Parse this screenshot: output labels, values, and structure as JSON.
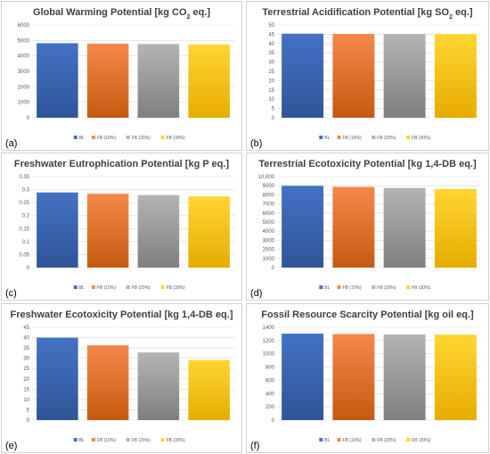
{
  "colors": {
    "BL": [
      "#4472c4",
      "#2f5597"
    ],
    "FB (10%)": [
      "#f4894a",
      "#c55a11"
    ],
    "FB (20%)": [
      "#b4b4b4",
      "#7f7f7f"
    ],
    "FB (30%)": [
      "#ffd633",
      "#e6ac00"
    ]
  },
  "legend": [
    "BL",
    "FB (10%)",
    "FB (20%)",
    "FB (30%)"
  ],
  "chart_data": [
    {
      "type": "bar",
      "panel_label": "(a)",
      "title_parts": [
        "Global Warming Potential [kg CO",
        "2",
        " eq.]"
      ],
      "categories": [
        "BL",
        "FB (10%)",
        "FB (20%)",
        "FB (30%)"
      ],
      "values": [
        4820,
        4790,
        4770,
        4740
      ],
      "ylim": [
        0,
        6000
      ],
      "ticks": [
        0,
        1000,
        2000,
        3000,
        4000,
        5000,
        6000
      ],
      "tick_labels": [
        "0",
        "1000",
        "2000",
        "3000",
        "4000",
        "5000",
        "6000"
      ],
      "grid": true
    },
    {
      "type": "bar",
      "panel_label": "(b)",
      "title_parts": [
        "Terrestrial Acidification Potential [kg SO",
        "2",
        " eq.]"
      ],
      "categories": [
        "BL",
        "FB (10%)",
        "FB (20%)",
        "FB (30%)"
      ],
      "values": [
        45.3,
        45.2,
        45.2,
        45.1
      ],
      "ylim": [
        0,
        50
      ],
      "ticks": [
        0,
        5,
        10,
        15,
        20,
        25,
        30,
        35,
        40,
        45,
        50
      ],
      "tick_labels": [
        "0",
        "5",
        "10",
        "15",
        "20",
        "25",
        "30",
        "35",
        "40",
        "45",
        "50"
      ],
      "grid": true
    },
    {
      "type": "bar",
      "panel_label": "(c)",
      "title_parts": [
        "Freshwater Eutrophication Potential [kg P eq.]"
      ],
      "categories": [
        "BL",
        "FB (10%)",
        "FB (20%)",
        "FB (30%)"
      ],
      "values": [
        0.289,
        0.284,
        0.279,
        0.274
      ],
      "ylim": [
        0,
        0.35
      ],
      "ticks": [
        0,
        0.05,
        0.1,
        0.15,
        0.2,
        0.25,
        0.3,
        0.35
      ],
      "tick_labels": [
        "0",
        "0.05",
        "0.1",
        "0.15",
        "0.2",
        "0.25",
        "0.3",
        "0.35"
      ],
      "grid": true
    },
    {
      "type": "bar",
      "panel_label": "(d)",
      "title_parts": [
        "Terrestrial Ecotoxicity Potential [kg 1,4-DB eq.]"
      ],
      "categories": [
        "BL",
        "FB (10%)",
        "FB (20%)",
        "FB (30%)"
      ],
      "values": [
        8980,
        8870,
        8750,
        8640
      ],
      "ylim": [
        0,
        10000
      ],
      "ticks": [
        0,
        1000,
        2000,
        3000,
        4000,
        5000,
        6000,
        7000,
        8000,
        9000,
        10000
      ],
      "tick_labels": [
        "0",
        "1000",
        "2000",
        "3000",
        "4000",
        "5000",
        "6000",
        "7000",
        "8000",
        "9000",
        "10,000"
      ],
      "grid": true
    },
    {
      "type": "bar",
      "panel_label": "(e)",
      "title_parts": [
        "Freshwater Ecotoxicity Potential [kg 1,4-DB eq.]"
      ],
      "categories": [
        "BL",
        "FB (10%)",
        "FB (20%)",
        "FB (30%)"
      ],
      "values": [
        40.0,
        36.3,
        32.8,
        29.1
      ],
      "ylim": [
        0,
        45
      ],
      "ticks": [
        0,
        5,
        10,
        15,
        20,
        25,
        30,
        35,
        40,
        45
      ],
      "tick_labels": [
        "0",
        "5",
        "10",
        "15",
        "20",
        "25",
        "30",
        "35",
        "40",
        "45"
      ],
      "grid": true
    },
    {
      "type": "bar",
      "panel_label": "(f)",
      "title_parts": [
        "Fossil Resource Scarcity Potential [kg oil eq.]"
      ],
      "categories": [
        "BL",
        "FB (10%)",
        "FB (20%)",
        "FB (30%)"
      ],
      "values": [
        1305,
        1300,
        1295,
        1290
      ],
      "ylim": [
        0,
        1400
      ],
      "ticks": [
        0,
        200,
        400,
        600,
        800,
        1000,
        1200,
        1400
      ],
      "tick_labels": [
        "0",
        "200",
        "400",
        "600",
        "800",
        "1000",
        "1200",
        "1400"
      ],
      "grid": true
    }
  ]
}
